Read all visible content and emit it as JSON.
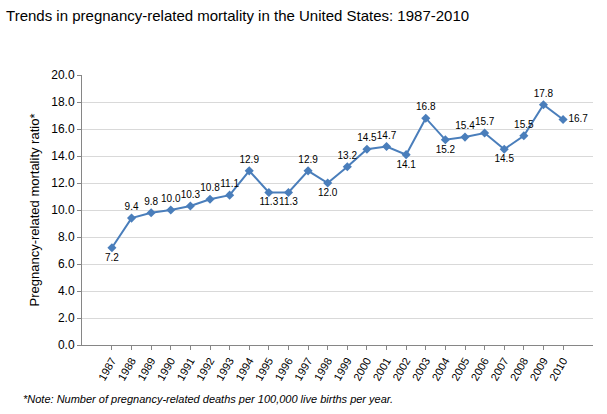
{
  "chart_data": {
    "type": "line",
    "title": "Trends in pregnancy-related mortality in the United States: 1987-2010",
    "y_label": "Pregnancy-related mortality ratio*",
    "note": "*Note: Number of pregnancy-related deaths per 100,000 live births per year.",
    "categories": [
      "1987",
      "1988",
      "1989",
      "1990",
      "1991",
      "1992",
      "1993",
      "1994",
      "1995",
      "1996",
      "1997",
      "1998",
      "1999",
      "2000",
      "2001",
      "2002",
      "2003",
      "2004",
      "2005",
      "2006",
      "2007",
      "2008",
      "2009",
      "2010"
    ],
    "values": [
      7.2,
      9.4,
      9.8,
      10.0,
      10.3,
      10.8,
      11.1,
      12.9,
      11.3,
      11.3,
      12.9,
      12.0,
      13.2,
      14.5,
      14.7,
      14.1,
      16.8,
      15.2,
      15.4,
      15.7,
      14.5,
      15.5,
      17.8,
      16.7
    ],
    "value_labels": [
      "7.2",
      "9.4",
      "9.8",
      "10.0",
      "10.3",
      "10.8",
      "11.1",
      "12.9",
      "11.3",
      "11.3",
      "12.9",
      "12.0",
      "13.2",
      "14.5",
      "14.7",
      "14.1",
      "16.8",
      "15.2",
      "15.4",
      "15.7",
      "14.5",
      "15.5",
      "17.8",
      "16.7"
    ],
    "color": "#4a7ebb",
    "marker": "diamond",
    "ylim": [
      0,
      20
    ],
    "yticks": [
      {
        "value": 0,
        "label": "0.0"
      },
      {
        "value": 2,
        "label": "2.0"
      },
      {
        "value": 4,
        "label": "4.0"
      },
      {
        "value": 6,
        "label": "6.0"
      },
      {
        "value": 8,
        "label": "8.0"
      },
      {
        "value": 10,
        "label": "10.0"
      },
      {
        "value": 12,
        "label": "12.0"
      },
      {
        "value": 14,
        "label": "14.0"
      },
      {
        "value": 16,
        "label": "16.0"
      },
      {
        "value": 18,
        "label": "18.0"
      },
      {
        "value": 20,
        "label": "20.0"
      }
    ],
    "grid": true,
    "data_labels": true
  }
}
